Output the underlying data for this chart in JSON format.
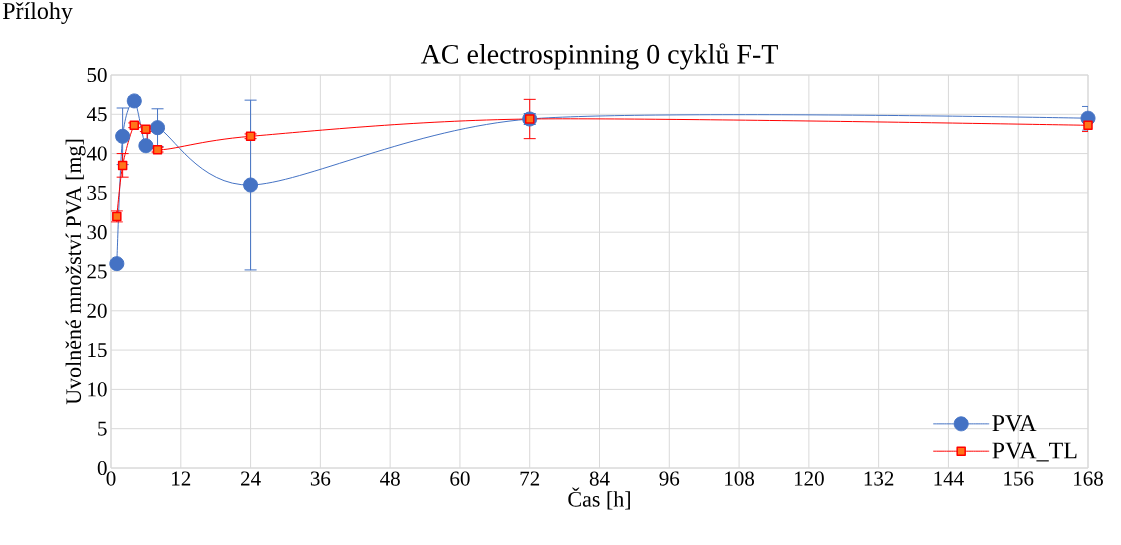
{
  "chart_data": {
    "type": "line",
    "title": "AC electrospinning 0 cyklů F-T",
    "xlabel": "Čas [h]",
    "ylabel": "Uvolněné množství PVA [mg]",
    "annotations": [
      "Přílohy"
    ],
    "x": [
      1,
      2,
      4,
      6,
      8,
      24,
      72,
      168
    ],
    "series": [
      {
        "name": "PVA",
        "color": "#4472c4",
        "marker": "circle",
        "values": [
          26,
          42.2,
          46.7,
          41,
          43.3,
          36,
          44.4,
          44.5
        ],
        "errors": [
          null,
          3.6,
          0.5,
          null,
          2.4,
          10.8,
          0.7,
          1.5
        ]
      },
      {
        "name": "PVA_TL",
        "color": "#ff0000",
        "marker": "square",
        "values": [
          32,
          38.5,
          43.6,
          43.1,
          40.5,
          42.2,
          44.4,
          43.6
        ],
        "errors": [
          0.7,
          1.5,
          0.3,
          0.3,
          0.3,
          0.3,
          2.5,
          0.8
        ]
      }
    ],
    "xlim": [
      0,
      168
    ],
    "xticks": [
      0,
      12,
      24,
      36,
      48,
      60,
      72,
      84,
      96,
      108,
      120,
      132,
      144,
      156,
      168
    ],
    "ylim": [
      0,
      50
    ],
    "yticks": [
      0,
      5,
      10,
      15,
      20,
      25,
      30,
      35,
      40,
      45,
      50
    ],
    "grid": true,
    "legend": "bottom right",
    "line_style": "solid"
  }
}
